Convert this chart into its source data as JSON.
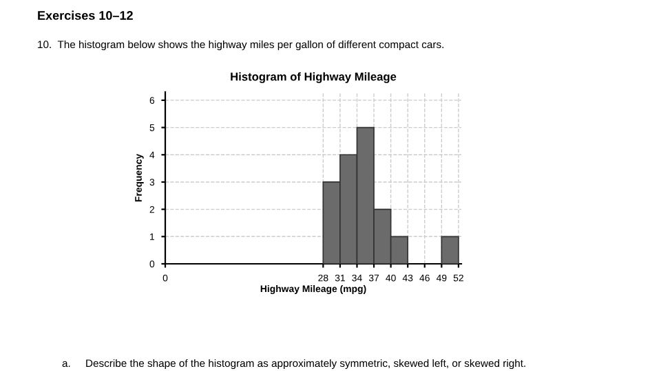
{
  "chart_data": {
    "type": "histogram",
    "title": "Histogram of Highway Mileage",
    "xlabel": "Highway Mileage (mpg)",
    "ylabel": "Frequency",
    "bins": [
      28,
      31,
      34,
      37,
      40,
      43,
      46,
      49,
      52
    ],
    "values": [
      3,
      4,
      5,
      2,
      1,
      0,
      0,
      1
    ],
    "color": "#6b6b6b",
    "xlim": [
      0,
      52.5
    ],
    "xticks": [
      0,
      28,
      31,
      34,
      37,
      40,
      43,
      46,
      49,
      52
    ],
    "ylim": [
      0,
      6.3
    ],
    "yticks": [
      0,
      1,
      2,
      3,
      4,
      5,
      6
    ],
    "grid": true,
    "annotations": [
      "Exercises 10–12",
      "10.  The histogram below shows the highway miles per gallon of different compact cars.",
      "a.     Describe the shape of the histogram as approximately symmetric, skewed left, or skewed right."
    ]
  }
}
